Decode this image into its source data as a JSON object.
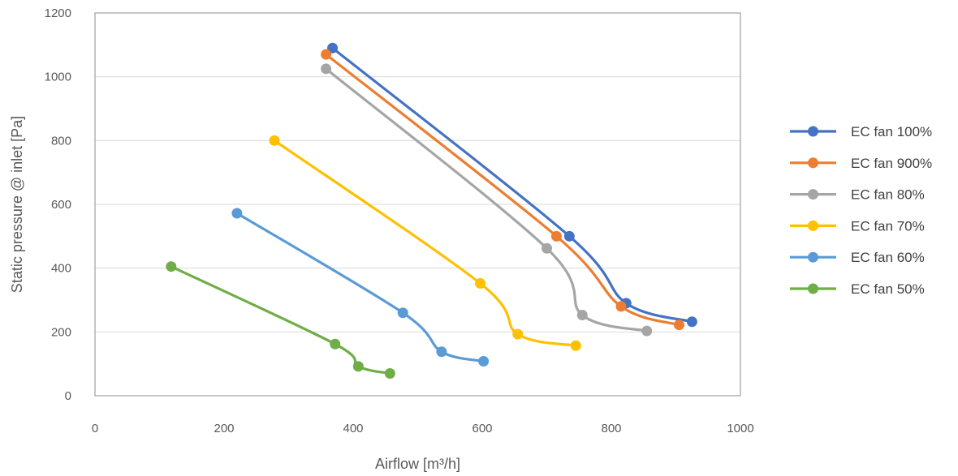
{
  "chart_data": {
    "type": "line",
    "xlabel": "Airflow [m³/h]",
    "ylabel": "Static pressure @ inlet [Pa]",
    "xlim": [
      0,
      1000
    ],
    "ylim": [
      0,
      1200
    ],
    "xticks": [
      0,
      200,
      400,
      600,
      800,
      1000
    ],
    "yticks": [
      0,
      200,
      400,
      600,
      800,
      1000,
      1200
    ],
    "grid": "horizontal",
    "legend_position": "right",
    "smooth": true,
    "series": [
      {
        "name": "EC fan 100%",
        "color": "#4472C4",
        "points": [
          [
            368,
            1090
          ],
          [
            735,
            500
          ],
          [
            823,
            290
          ],
          [
            925,
            232
          ]
        ]
      },
      {
        "name": "EC fan 900%",
        "color": "#ED7D31",
        "points": [
          [
            358,
            1070
          ],
          [
            715,
            500
          ],
          [
            815,
            280
          ],
          [
            905,
            222
          ]
        ]
      },
      {
        "name": "EC fan 80%",
        "color": "#A5A5A5",
        "points": [
          [
            358,
            1025
          ],
          [
            700,
            462
          ],
          [
            755,
            253
          ],
          [
            855,
            203
          ]
        ]
      },
      {
        "name": "EC fan 70%",
        "color": "#FFC000",
        "points": [
          [
            278,
            800
          ],
          [
            597,
            352
          ],
          [
            655,
            193
          ],
          [
            745,
            157
          ]
        ]
      },
      {
        "name": "EC fan 60%",
        "color": "#5B9BD5",
        "points": [
          [
            220,
            572
          ],
          [
            477,
            260
          ],
          [
            537,
            138
          ],
          [
            602,
            108
          ]
        ]
      },
      {
        "name": "EC fan 50%",
        "color": "#70AD47",
        "points": [
          [
            118,
            405
          ],
          [
            372,
            162
          ],
          [
            408,
            92
          ],
          [
            457,
            70
          ]
        ]
      }
    ]
  }
}
